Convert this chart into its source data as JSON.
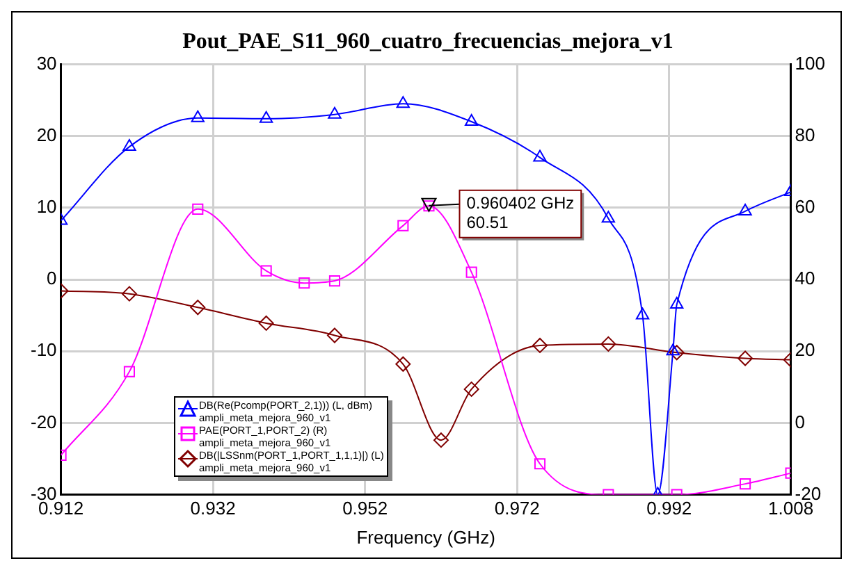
{
  "chart_data": {
    "type": "line",
    "title": "Pout_PAE_S11_960_cuatro_frecuencias_mejora_v1",
    "xlabel": "Frequency (GHz)",
    "xlim": [
      0.912,
      1.008
    ],
    "xticks": [
      0.912,
      0.932,
      0.952,
      0.972,
      0.992,
      1.008
    ],
    "ylim": [
      -30,
      30
    ],
    "yticks": [
      -30,
      -20,
      -10,
      0,
      10,
      20,
      30
    ],
    "y2lim": [
      -20,
      100
    ],
    "y2ticks": [
      -20,
      0,
      20,
      40,
      60,
      80,
      100
    ],
    "grid": true,
    "legend": "bottom left",
    "line_style": "solid",
    "series": [
      {
        "name": "DB(Re(Pcomp(PORT_2,1))) (L, dBm)\nampli_meta_mejora_960_v1",
        "color": "#0000ff",
        "marker": "triangle",
        "x": [
          0.912,
          0.921,
          0.93,
          0.939,
          0.948,
          0.957,
          0.966,
          0.975,
          0.984,
          0.9885,
          0.9905,
          0.9925,
          0.993,
          1.002,
          1.008
        ],
        "values": [
          8.2,
          18.5,
          22.5,
          22.4,
          23,
          24.5,
          22,
          17,
          8.5,
          -5,
          -30,
          -10,
          -3.5,
          9.5,
          12.2
        ]
      },
      {
        "name": "PAE(PORT_1,PORT_2) (R)\nampli_meta_mejora_960_v1",
        "color": "#ff00ff",
        "marker": "square",
        "axis": "y2",
        "x": [
          0.912,
          0.921,
          0.93,
          0.939,
          0.944,
          0.948,
          0.957,
          0.960402,
          0.966,
          0.975,
          0.984,
          0.993,
          1.002,
          1.008
        ],
        "values": [
          -9,
          14.3,
          59.6,
          42.4,
          39,
          39.6,
          55,
          60.5,
          42,
          -11.4,
          -20,
          -20,
          -17,
          -14
        ]
      },
      {
        "name": "DB(|LSSnm(PORT_1,PORT_1,1,1)|) (L)\nampli_meta_mejora_960_v1",
        "color": "#800000",
        "marker": "diamond",
        "x": [
          0.912,
          0.921,
          0.93,
          0.939,
          0.948,
          0.957,
          0.962,
          0.966,
          0.975,
          0.984,
          0.993,
          1.002,
          1.008
        ],
        "values": [
          -1.6,
          -2,
          -3.9,
          -6.1,
          -7.8,
          -11.8,
          -22.4,
          -15.3,
          -9.2,
          -9,
          -10.2,
          -11,
          -11.2
        ]
      }
    ],
    "annotations": [
      {
        "text": "0.960402 GHz\n60.51",
        "x": 0.960402,
        "y": 10.3
      }
    ]
  }
}
